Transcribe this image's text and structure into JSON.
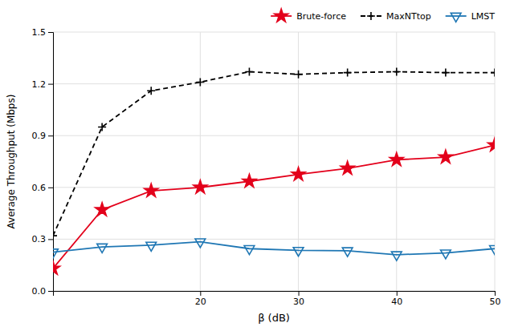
{
  "chart_data": {
    "type": "line",
    "xlabel": "β (dB)",
    "ylabel": "Average Throughput (Mbps)",
    "x": [
      5,
      10,
      15,
      20,
      25,
      30,
      35,
      40,
      45,
      50
    ],
    "series": [
      {
        "name": "Brute-force",
        "color": "#e3001b",
        "marker": "star",
        "line_style": "solid",
        "values": [
          0.13,
          0.47,
          0.58,
          0.6,
          0.635,
          0.675,
          0.71,
          0.76,
          0.775,
          0.845
        ]
      },
      {
        "name": "MaxNTtop",
        "color": "#000000",
        "marker": "plus",
        "line_style": "dashed",
        "values": [
          0.32,
          0.95,
          1.16,
          1.21,
          1.27,
          1.255,
          1.265,
          1.27,
          1.265,
          1.265
        ]
      },
      {
        "name": "LMST",
        "color": "#1f77b4",
        "marker": "triangle-down",
        "line_style": "solid",
        "values": [
          0.225,
          0.255,
          0.265,
          0.285,
          0.245,
          0.235,
          0.233,
          0.21,
          0.22,
          0.245
        ]
      }
    ],
    "xlim": [
      5,
      50
    ],
    "ylim": [
      0,
      1.5
    ],
    "xticks": [
      20,
      30,
      40,
      50
    ],
    "yticks": [
      {
        "value": 0,
        "label": "0.0"
      },
      0.3,
      0.6,
      0.9,
      1.2,
      1.5
    ],
    "grid": true,
    "legend": "upper right"
  }
}
